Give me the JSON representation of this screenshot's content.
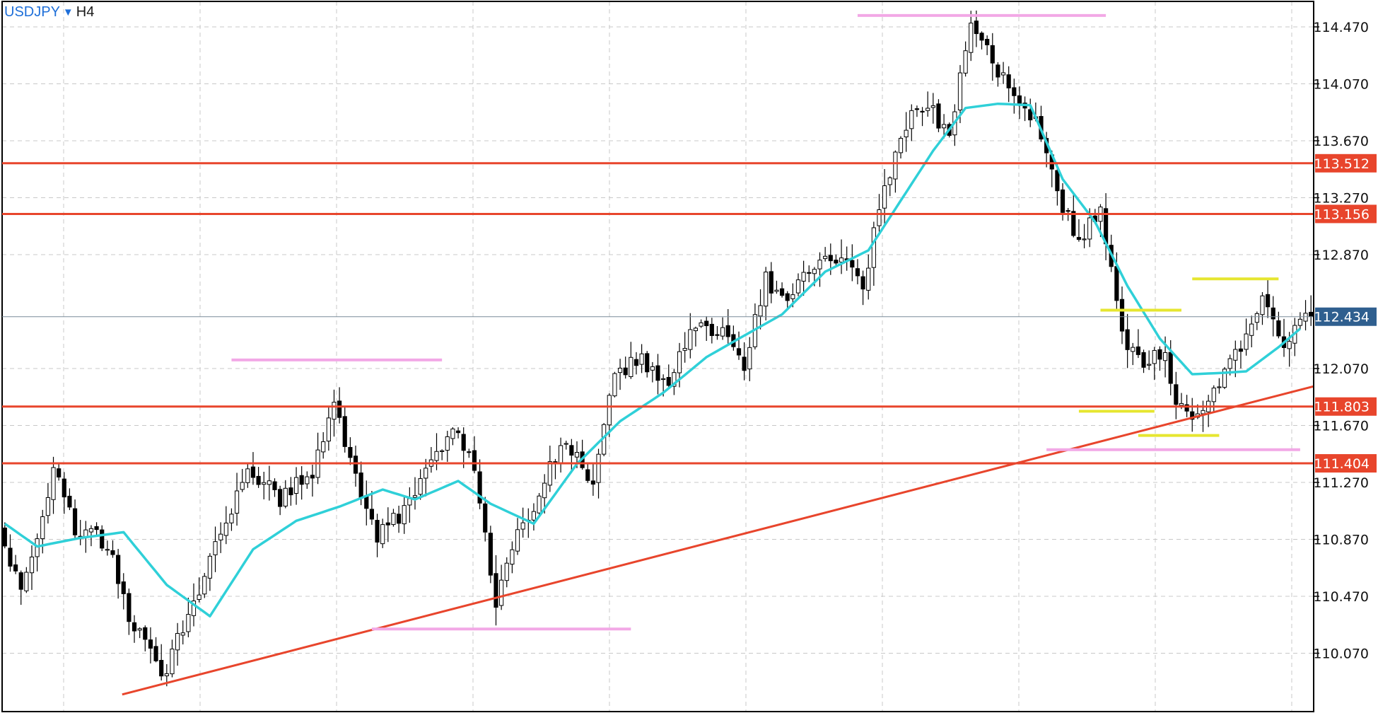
{
  "header": {
    "symbol": "USDJPY",
    "timeframe": "H4"
  },
  "colors": {
    "level_line": "#e8452c",
    "level_tag": "#e8452c",
    "current_tag": "#2f5f8f",
    "ma_line": "#2fd0d8",
    "yellow_marks": "#e6e630",
    "pink_marks": "#f2a8e6",
    "grid": "#c8c8c8",
    "candle": "#000000"
  },
  "chart_data": {
    "type": "candlestick",
    "symbol": "USDJPY",
    "timeframe": "H4",
    "ylim": [
      109.79,
      114.57
    ],
    "y_ticks": [
      "114.470",
      "114.070",
      "113.670",
      "113.270",
      "112.870",
      "112.070",
      "111.670",
      "111.270",
      "110.870",
      "110.470",
      "110.070"
    ],
    "grid": true,
    "current_price": "112.434",
    "levels": [
      {
        "price": 113.512,
        "label": "113.512"
      },
      {
        "price": 113.156,
        "label": "113.156"
      },
      {
        "price": 111.803,
        "label": "111.803"
      },
      {
        "price": 111.404,
        "label": "111.404"
      }
    ],
    "trendline": {
      "from": {
        "bar": 0,
        "price": 109.6
      },
      "to": {
        "bar": 240,
        "price": 111.93
      }
    },
    "ma_anchors": [
      [
        0,
        110.98
      ],
      [
        6,
        110.82
      ],
      [
        14,
        110.88
      ],
      [
        22,
        110.92
      ],
      [
        30,
        110.55
      ],
      [
        38,
        110.33
      ],
      [
        46,
        110.8
      ],
      [
        54,
        111.0
      ],
      [
        62,
        111.1
      ],
      [
        70,
        111.22
      ],
      [
        76,
        111.15
      ],
      [
        84,
        111.28
      ],
      [
        90,
        111.12
      ],
      [
        98,
        110.98
      ],
      [
        106,
        111.4
      ],
      [
        114,
        111.7
      ],
      [
        122,
        111.9
      ],
      [
        130,
        112.15
      ],
      [
        136,
        112.28
      ],
      [
        144,
        112.45
      ],
      [
        152,
        112.75
      ],
      [
        160,
        112.9
      ],
      [
        166,
        113.25
      ],
      [
        172,
        113.6
      ],
      [
        178,
        113.9
      ],
      [
        184,
        113.93
      ],
      [
        190,
        113.92
      ],
      [
        196,
        113.4
      ],
      [
        202,
        113.1
      ],
      [
        208,
        112.65
      ],
      [
        214,
        112.28
      ],
      [
        220,
        112.03
      ],
      [
        226,
        112.04
      ],
      [
        230,
        112.05
      ],
      [
        236,
        112.22
      ],
      [
        240,
        112.35
      ]
    ],
    "price_anchors": [
      [
        0,
        110.95
      ],
      [
        4,
        110.5
      ],
      [
        10,
        111.35
      ],
      [
        14,
        110.95
      ],
      [
        20,
        110.85
      ],
      [
        24,
        110.35
      ],
      [
        30,
        109.9
      ],
      [
        36,
        110.4
      ],
      [
        42,
        111.0
      ],
      [
        46,
        111.38
      ],
      [
        52,
        111.15
      ],
      [
        58,
        111.35
      ],
      [
        62,
        111.85
      ],
      [
        66,
        111.3
      ],
      [
        70,
        110.9
      ],
      [
        76,
        111.1
      ],
      [
        80,
        111.45
      ],
      [
        84,
        111.65
      ],
      [
        88,
        111.35
      ],
      [
        92,
        110.45
      ],
      [
        96,
        110.9
      ],
      [
        100,
        111.2
      ],
      [
        104,
        111.55
      ],
      [
        110,
        111.3
      ],
      [
        114,
        112.0
      ],
      [
        118,
        112.15
      ],
      [
        124,
        111.95
      ],
      [
        128,
        112.35
      ],
      [
        134,
        112.3
      ],
      [
        138,
        112.1
      ],
      [
        142,
        112.7
      ],
      [
        146,
        112.5
      ],
      [
        150,
        112.8
      ],
      [
        156,
        112.85
      ],
      [
        160,
        112.65
      ],
      [
        164,
        113.35
      ],
      [
        168,
        113.8
      ],
      [
        172,
        113.92
      ],
      [
        176,
        113.7
      ],
      [
        180,
        114.48
      ],
      [
        184,
        114.25
      ],
      [
        188,
        113.95
      ],
      [
        192,
        113.8
      ],
      [
        196,
        113.3
      ],
      [
        200,
        112.95
      ],
      [
        204,
        113.2
      ],
      [
        208,
        112.3
      ],
      [
        212,
        112.1
      ],
      [
        216,
        112.2
      ],
      [
        218,
        111.85
      ],
      [
        222,
        111.72
      ],
      [
        226,
        112.0
      ],
      [
        230,
        112.25
      ],
      [
        234,
        112.6
      ],
      [
        238,
        112.25
      ],
      [
        242,
        112.45
      ]
    ],
    "marks": [
      {
        "color": "pink",
        "bar_from": 158,
        "bar_to": 204,
        "price": 114.55
      },
      {
        "color": "pink",
        "bar_from": 42,
        "bar_to": 81,
        "price": 112.13
      },
      {
        "color": "pink",
        "bar_from": 68,
        "bar_to": 116,
        "price": 110.24
      },
      {
        "color": "pink",
        "bar_from": 193,
        "bar_to": 240,
        "price": 111.5
      },
      {
        "color": "yellow",
        "bar_from": 220,
        "bar_to": 236,
        "price": 112.7
      },
      {
        "color": "yellow",
        "bar_from": 203,
        "bar_to": 218,
        "price": 112.48
      },
      {
        "color": "yellow",
        "bar_from": 199,
        "bar_to": 213,
        "price": 111.77
      },
      {
        "color": "yellow",
        "bar_from": 210,
        "bar_to": 225,
        "price": 111.6
      }
    ]
  }
}
